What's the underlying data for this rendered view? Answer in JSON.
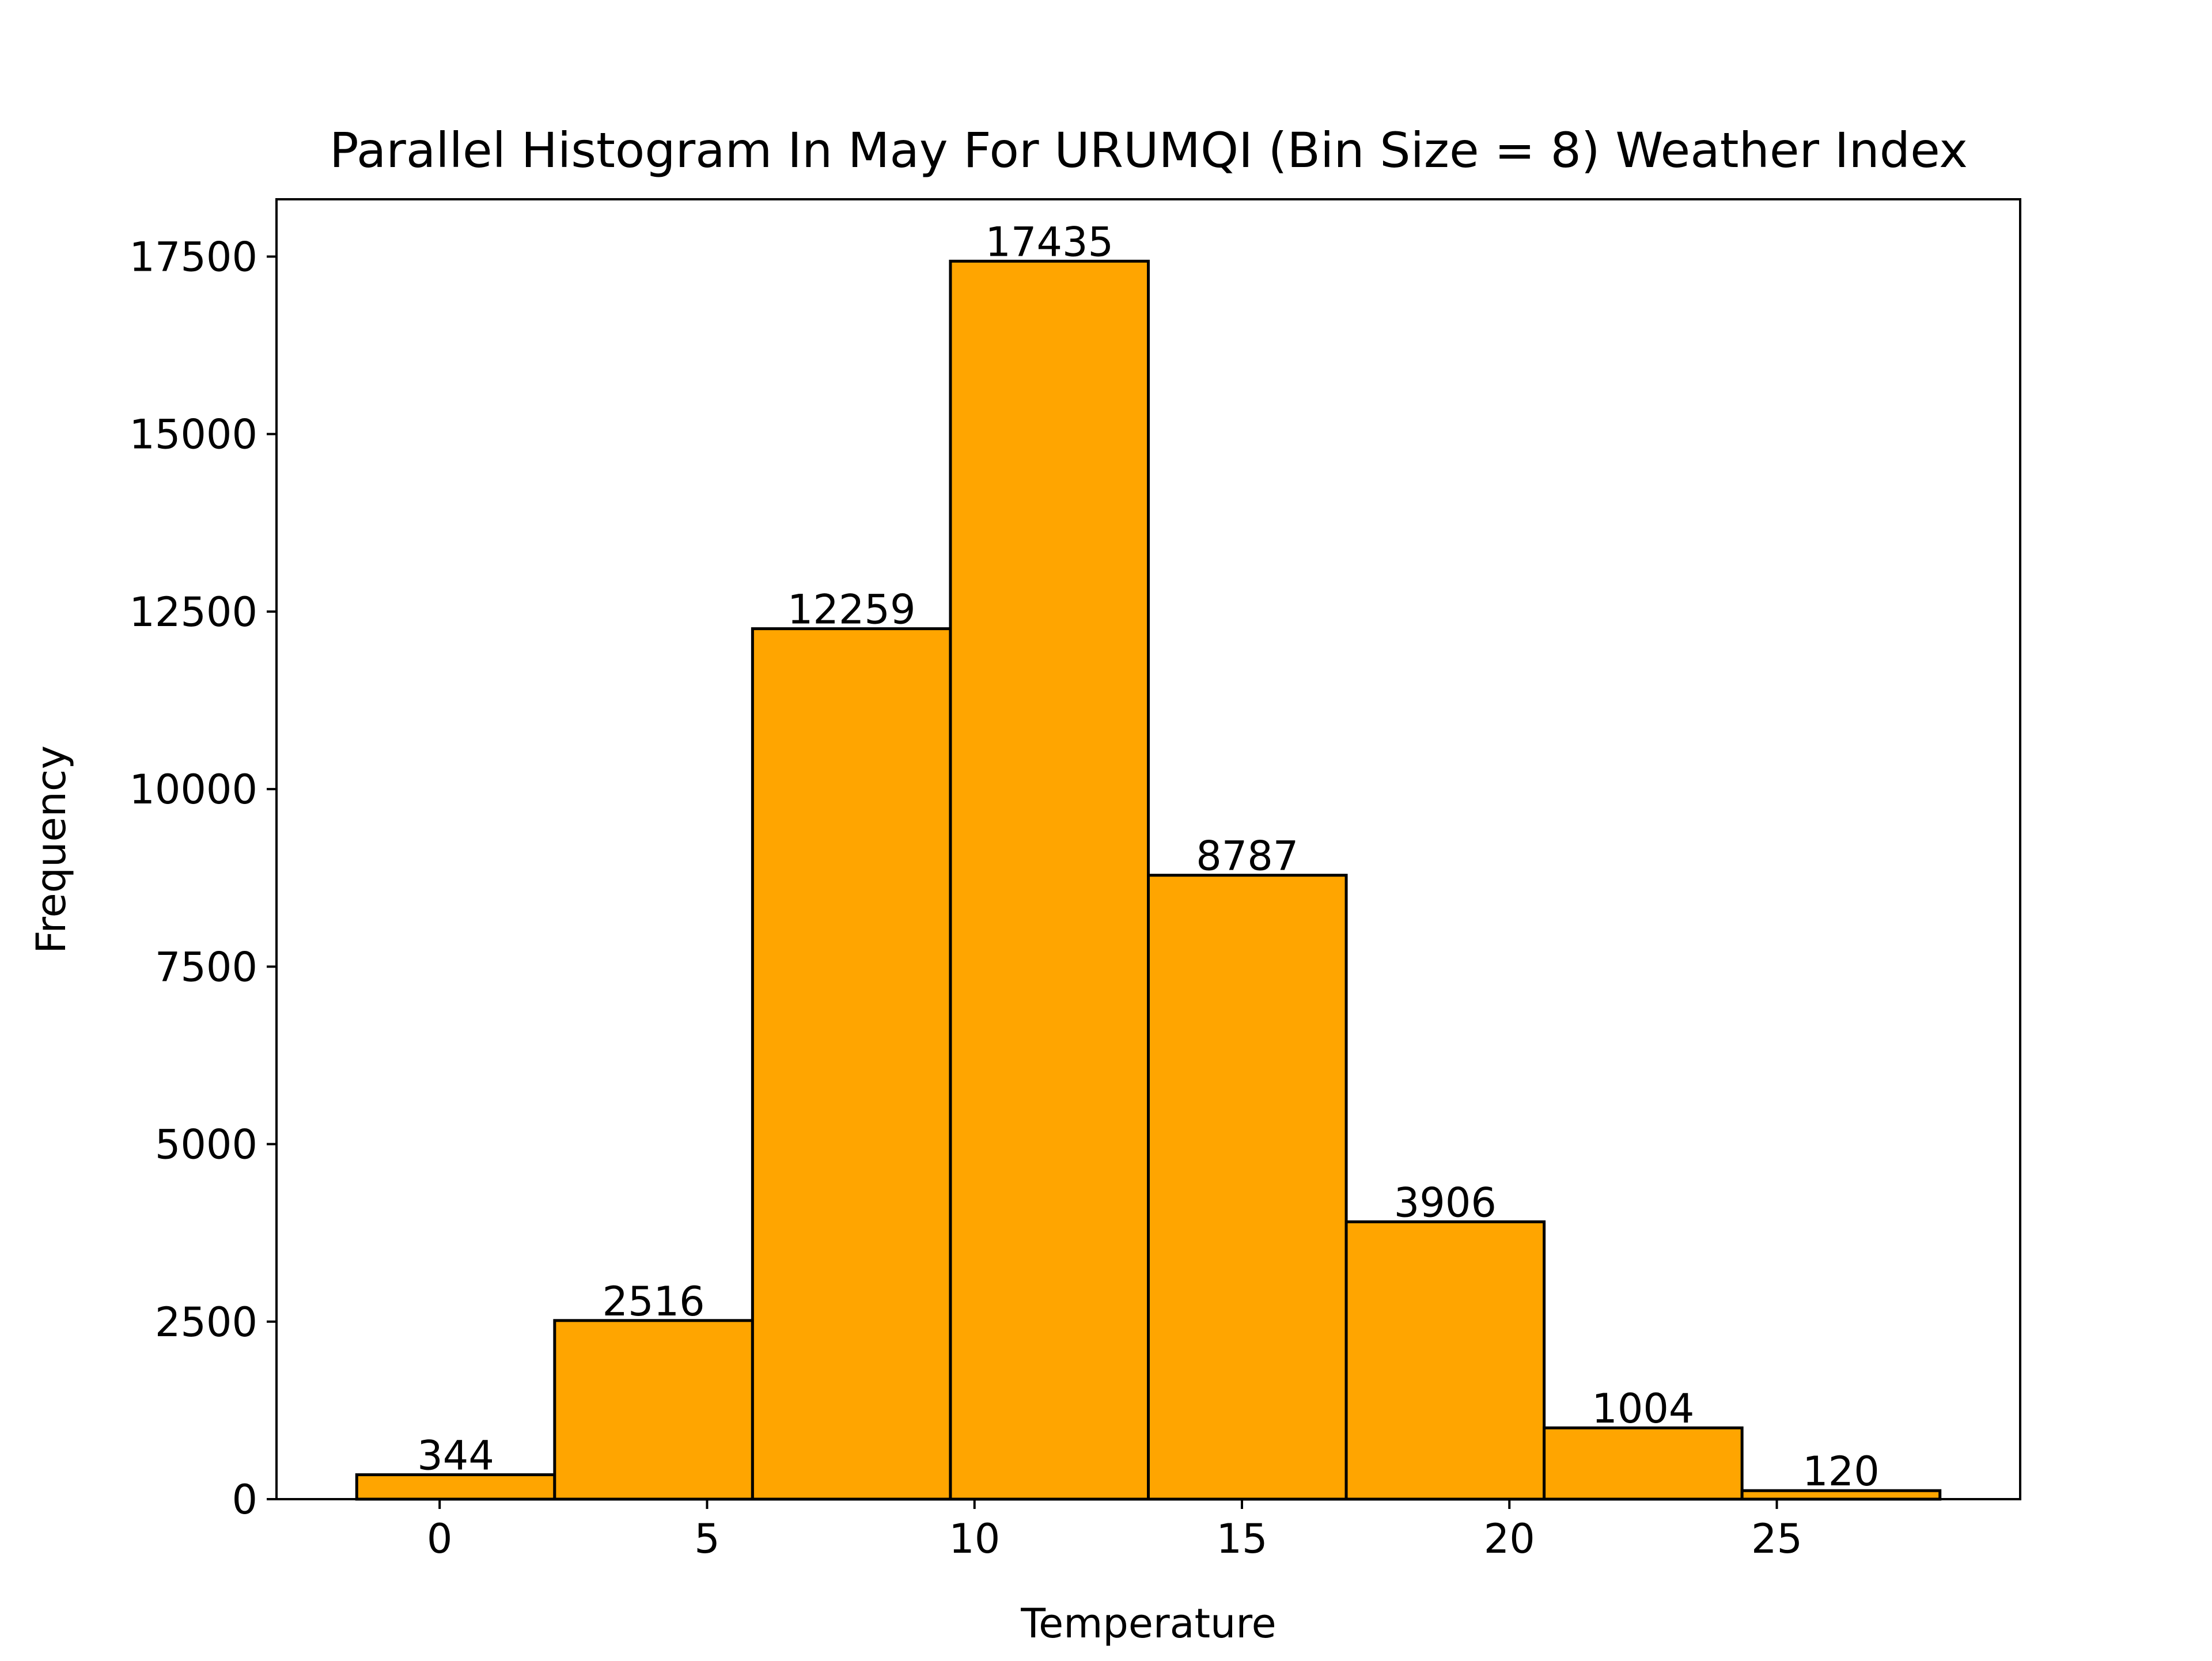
{
  "chart_data": {
    "type": "bar",
    "title": "Parallel Histogram In May For URUMQI (Bin Size = 8) Weather Index",
    "xlabel": "Temperature",
    "ylabel": "Frequency",
    "bin_edges": [
      -1.55,
      2.15,
      5.85,
      9.55,
      13.25,
      16.95,
      20.65,
      24.35,
      28.05
    ],
    "values": [
      344,
      2516,
      12259,
      17435,
      8787,
      3906,
      1004,
      120
    ],
    "data_labels": [
      "344",
      "2516",
      "12259",
      "17435",
      "8787",
      "3906",
      "1004",
      "120"
    ],
    "xlim": [
      -3.05,
      29.55
    ],
    "ylim": [
      0,
      18306.75
    ],
    "x_ticks": [
      0,
      5,
      10,
      15,
      20,
      25
    ],
    "x_tick_labels": [
      "0",
      "5",
      "10",
      "15",
      "20",
      "25"
    ],
    "y_ticks": [
      0,
      2500,
      5000,
      7500,
      10000,
      12500,
      15000,
      17500
    ],
    "y_tick_labels": [
      "0",
      "2500",
      "5000",
      "7500",
      "10000",
      "12500",
      "15000",
      "17500"
    ],
    "grid": false,
    "colors": {
      "bar_fill": "#FFA500",
      "bar_edge": "#000000"
    }
  }
}
